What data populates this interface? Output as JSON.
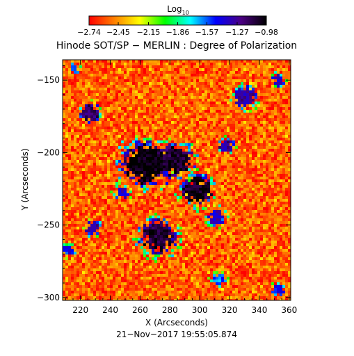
{
  "chart_data": {
    "type": "heatmap",
    "title": "Hinode SOT/SP − MERLIN : Degree of Polarization",
    "xlabel": "X (Arcseconds)",
    "ylabel": "Y (Arcseconds)",
    "xlim": [
      208,
      361
    ],
    "ylim": [
      -302,
      -136
    ],
    "x_ticks": [
      220,
      240,
      260,
      280,
      300,
      320,
      340,
      360
    ],
    "x_tick_labels": [
      "220",
      "240",
      "260",
      "280",
      "300",
      "320",
      "340",
      "360"
    ],
    "y_ticks": [
      -150,
      -200,
      -250,
      -300
    ],
    "y_tick_labels": [
      "−150",
      "−200",
      "−250",
      "−300"
    ],
    "timestamp": "21−Nov−2017 19:55:05.874",
    "colorbar": {
      "title": "Log",
      "title_subscript": "10",
      "range": [
        -2.74,
        -0.98
      ],
      "ticks": [
        -2.74,
        -2.45,
        -2.15,
        -1.86,
        -1.57,
        -1.27,
        -0.98
      ],
      "tick_labels": [
        "−2.74",
        "−2.45",
        "−2.15",
        "−1.86",
        "−1.57",
        "−1.27",
        "−0.98"
      ],
      "colormap": [
        "#ff0000",
        "#ff8000",
        "#ffff00",
        "#00ff00",
        "#00ffff",
        "#0000ff",
        "#4b0082",
        "#000000"
      ]
    },
    "polarized_regions": [
      {
        "x": 263,
        "y": -208,
        "size": 17,
        "level": -1.1
      },
      {
        "x": 283,
        "y": -206,
        "size": 14,
        "level": -1.2
      },
      {
        "x": 298,
        "y": -226,
        "size": 12,
        "level": -1.15
      },
      {
        "x": 272,
        "y": -258,
        "size": 14,
        "level": -1.2
      },
      {
        "x": 226,
        "y": -173,
        "size": 8,
        "level": -1.3
      },
      {
        "x": 331,
        "y": -162,
        "size": 9,
        "level": -1.4
      },
      {
        "x": 311,
        "y": -244,
        "size": 7,
        "level": -1.5
      },
      {
        "x": 228,
        "y": -252,
        "size": 6,
        "level": -1.4
      },
      {
        "x": 212,
        "y": -268,
        "size": 5,
        "level": -1.6
      },
      {
        "x": 313,
        "y": -288,
        "size": 6,
        "level": -1.7
      },
      {
        "x": 353,
        "y": -295,
        "size": 5,
        "level": -1.6
      },
      {
        "x": 353,
        "y": -150,
        "size": 5,
        "level": -1.5
      },
      {
        "x": 216,
        "y": -142,
        "size": 4,
        "level": -1.6
      },
      {
        "x": 318,
        "y": -195,
        "size": 6,
        "level": -1.4
      },
      {
        "x": 248,
        "y": -228,
        "size": 6,
        "level": -1.5
      }
    ]
  }
}
